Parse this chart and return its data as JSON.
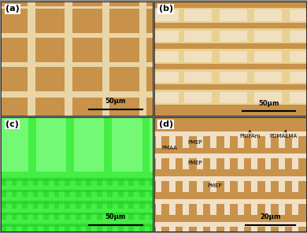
{
  "panel_labels": [
    "(a)",
    "(b)",
    "(c)",
    "(d)"
  ],
  "label_bg": "white",
  "label_color": "black",
  "outer_bg": "#888888",
  "panel_a": {
    "bg_color": "#e8d5a8",
    "square_color": "#c8924a",
    "scalebar_text": "50μm"
  },
  "panel_b": {
    "bg_color": "#c8924a",
    "stripe_color": "#e8d090",
    "block_color": "#f0e0c0",
    "scalebar_text": "50μm"
  },
  "panel_c": {
    "bg_color": "#44ee44",
    "pattern_color": "#88ff88",
    "dark_pattern": "#22cc22",
    "scalebar_text": "50μm"
  },
  "panel_d": {
    "bg_color": "#c8924a",
    "pattern_color": "#f0e0c8",
    "scalebar_text": "20μm"
  },
  "border_color": "black",
  "scalebar_color": "black",
  "panel_label_fontsize": 8,
  "scalebar_fontsize": 6
}
